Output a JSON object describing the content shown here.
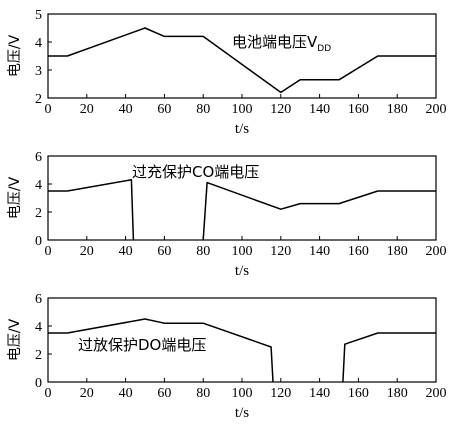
{
  "chart_data": [
    {
      "type": "line",
      "ylabel": "电压/V",
      "xlabel": "t/s",
      "xlim": [
        0,
        200
      ],
      "ylim": [
        2,
        5
      ],
      "x_ticks": [
        0,
        20,
        40,
        60,
        80,
        100,
        120,
        140,
        160,
        180,
        200
      ],
      "y_ticks": [
        2,
        3,
        4,
        5
      ],
      "annotation": "电池端电压V",
      "annotation_sub": "DD",
      "segments": [
        [
          [
            0,
            3.5
          ],
          [
            10,
            3.5
          ],
          [
            50,
            4.5
          ],
          [
            60,
            4.2
          ],
          [
            80,
            4.2
          ],
          [
            120,
            2.2
          ],
          [
            130,
            2.65
          ],
          [
            150,
            2.65
          ],
          [
            170,
            3.5
          ],
          [
            200,
            3.5
          ]
        ]
      ]
    },
    {
      "type": "line",
      "ylabel": "电压/V",
      "xlabel": "t/s",
      "xlim": [
        0,
        200
      ],
      "ylim": [
        0,
        6
      ],
      "x_ticks": [
        0,
        20,
        40,
        60,
        80,
        100,
        120,
        140,
        160,
        180,
        200
      ],
      "y_ticks": [
        0,
        2,
        4,
        6
      ],
      "annotation": "过充保护CO端电压",
      "annotation_sub": "",
      "segments": [
        [
          [
            0,
            3.5
          ],
          [
            10,
            3.5
          ],
          [
            43,
            4.3
          ],
          [
            44,
            0
          ]
        ],
        [
          [
            80,
            0
          ],
          [
            82,
            4.1
          ],
          [
            120,
            2.2
          ],
          [
            130,
            2.6
          ],
          [
            150,
            2.6
          ],
          [
            170,
            3.5
          ],
          [
            200,
            3.5
          ]
        ]
      ]
    },
    {
      "type": "line",
      "ylabel": "电压/V",
      "xlabel": "t/s",
      "xlim": [
        0,
        200
      ],
      "ylim": [
        0,
        6
      ],
      "x_ticks": [
        0,
        20,
        40,
        60,
        80,
        100,
        120,
        140,
        160,
        180,
        200
      ],
      "y_ticks": [
        0,
        2,
        4,
        6
      ],
      "annotation": "过放保护DO端电压",
      "annotation_sub": "",
      "segments": [
        [
          [
            0,
            3.5
          ],
          [
            10,
            3.5
          ],
          [
            50,
            4.5
          ],
          [
            60,
            4.2
          ],
          [
            80,
            4.2
          ],
          [
            115,
            2.5
          ],
          [
            116,
            0
          ]
        ],
        [
          [
            152,
            0
          ],
          [
            153,
            2.7
          ],
          [
            170,
            3.5
          ],
          [
            200,
            3.5
          ]
        ]
      ]
    }
  ]
}
